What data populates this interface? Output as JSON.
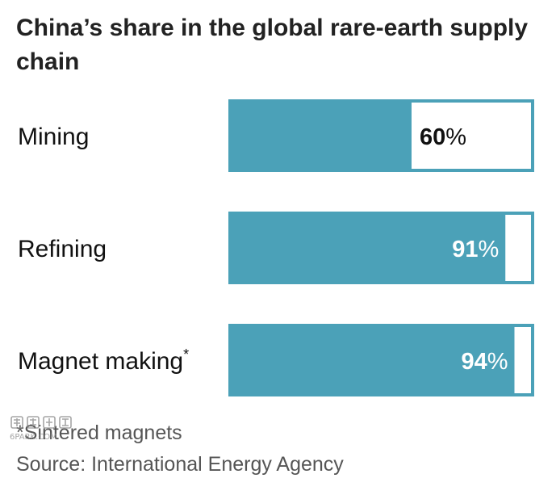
{
  "chart_data": {
    "type": "bar",
    "orientation": "horizontal",
    "stacked_to_100": true,
    "title": "China’s share in the global rare-earth supply chain",
    "categories": [
      "Mining",
      "Refining",
      "Magnet making"
    ],
    "category_marks": [
      "",
      "",
      "*"
    ],
    "values": [
      60,
      91,
      94
    ],
    "value_labels": [
      "60",
      "91",
      "94"
    ],
    "value_suffix": "%",
    "xlim": [
      0,
      100
    ],
    "grid": false,
    "legend": "none",
    "colors": {
      "bar": "#4ba1b8",
      "remainder": "#ffffff",
      "outline": "#4ba1b8",
      "label_on_bar": "#ffffff",
      "label_outside": "#111111"
    }
  },
  "footnote": "*Sintered magnets",
  "source": "Source: International Energy Agency",
  "watermark": {
    "icon": "gpark-watermark-icon",
    "text": "6PARK.COM"
  }
}
